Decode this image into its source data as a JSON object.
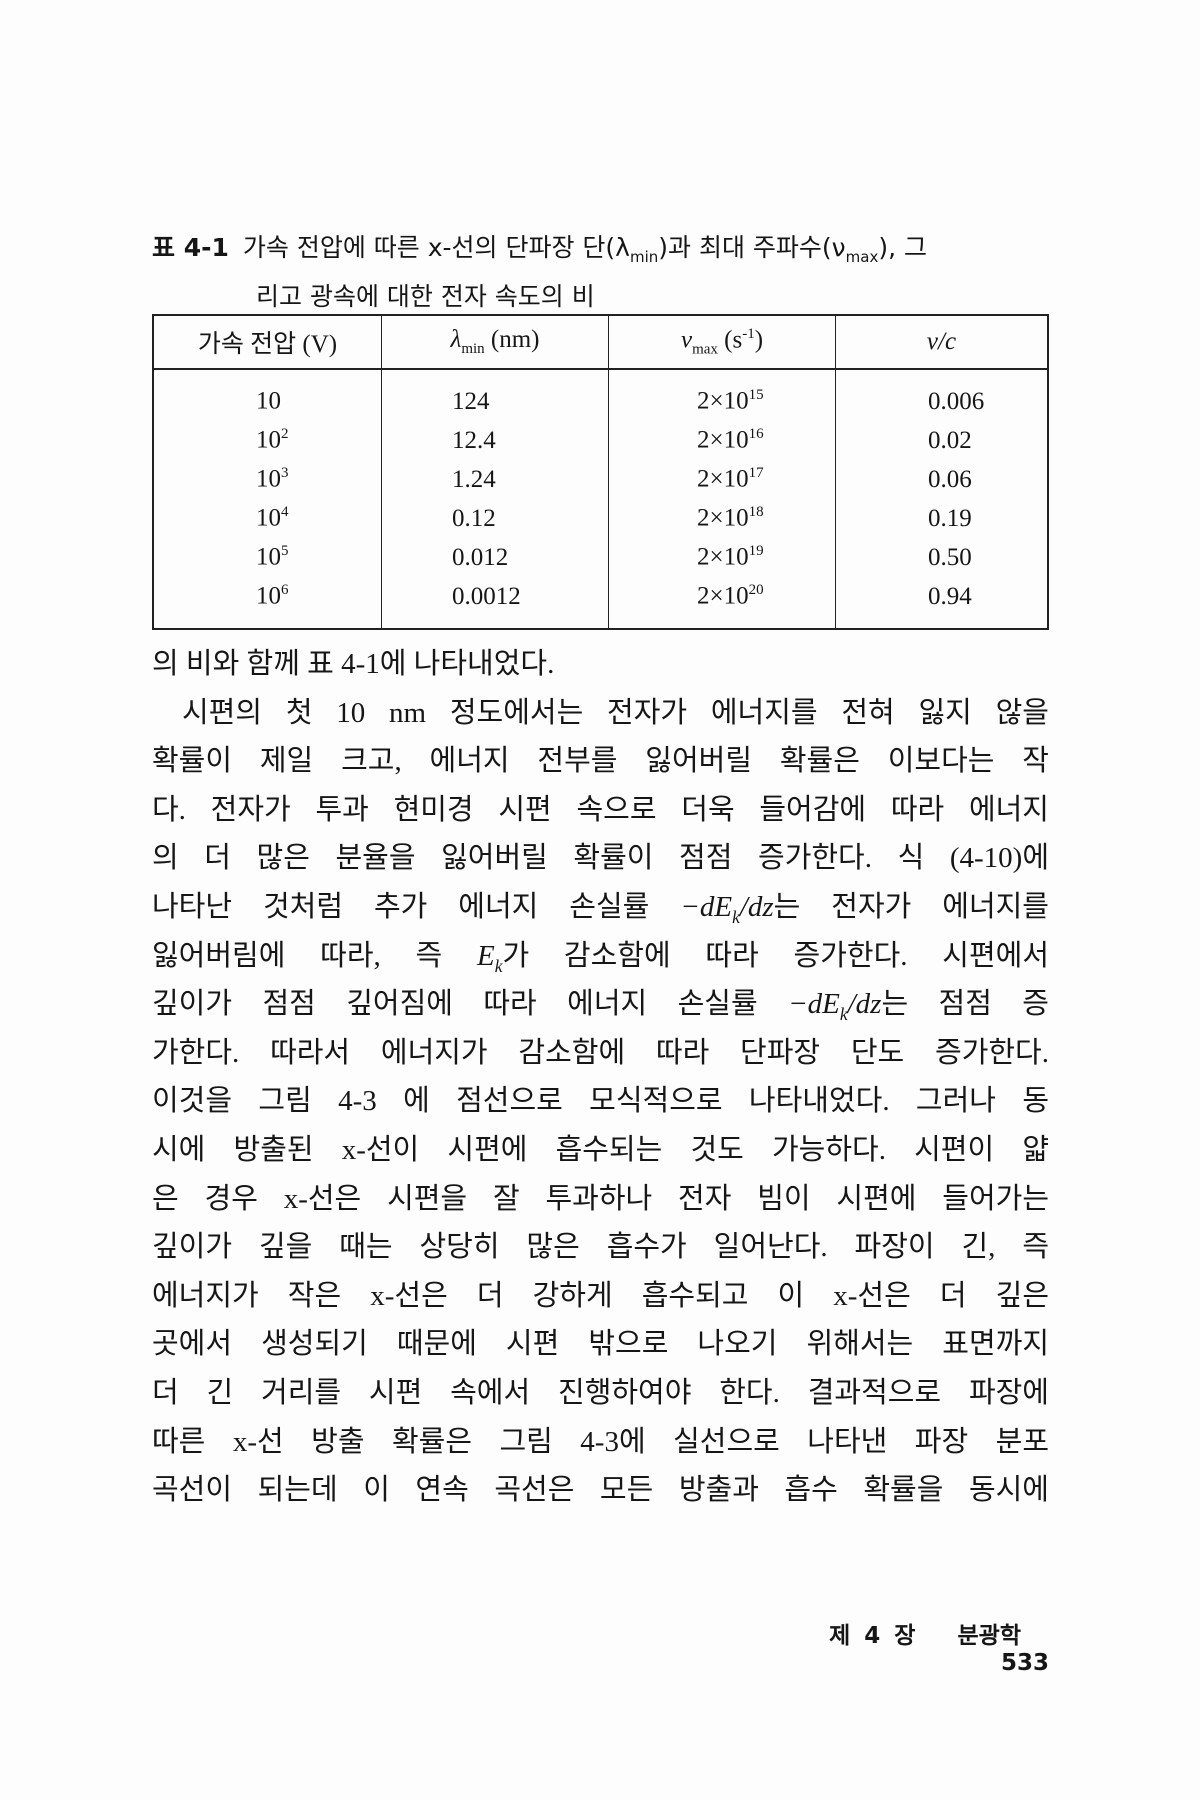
{
  "caption": {
    "label": "표 4-1",
    "line1_a": "가속 전압에 따른 x-선의 단파장 단(λ",
    "line1_sub1": "min",
    "line1_b": ")과 최대 주파수(ν",
    "line1_sub2": "max",
    "line1_c": "), 그",
    "line2": "리고 광속에 대한 전자 속도의 비"
  },
  "table": {
    "headers": {
      "voltage": "가속 전압 (V)",
      "lambda_sym": "λ",
      "lambda_sub": "min",
      "lambda_unit": " (nm)",
      "nu_sym": "ν",
      "nu_sub": "max",
      "nu_unit_a": " (s",
      "nu_unit_exp": "-1",
      "nu_unit_b": ")",
      "vc": "v/c"
    },
    "rows": [
      {
        "v_base": "10",
        "v_exp": "",
        "lambda": "124",
        "nu_base": "2×10",
        "nu_exp": "15",
        "vc": "0.006"
      },
      {
        "v_base": "10",
        "v_exp": "2",
        "lambda": "12.4",
        "nu_base": "2×10",
        "nu_exp": "16",
        "vc": "0.02"
      },
      {
        "v_base": "10",
        "v_exp": "3",
        "lambda": "1.24",
        "nu_base": "2×10",
        "nu_exp": "17",
        "vc": "0.06"
      },
      {
        "v_base": "10",
        "v_exp": "4",
        "lambda": "0.12",
        "nu_base": "2×10",
        "nu_exp": "18",
        "vc": "0.19"
      },
      {
        "v_base": "10",
        "v_exp": "5",
        "lambda": "0.012",
        "nu_base": "2×10",
        "nu_exp": "19",
        "vc": "0.50"
      },
      {
        "v_base": "10",
        "v_exp": "6",
        "lambda": "0.0012",
        "nu_base": "2×10",
        "nu_exp": "20",
        "vc": "0.94"
      }
    ]
  },
  "body_lines": [
    [
      {
        "t": "의 비와 함께 표 4-1에 나타내었다."
      }
    ],
    [
      {
        "t": "시편의 첫 10 nm 정도에서는 전자가 에너지를 전혀 잃지 않을"
      }
    ],
    [
      {
        "t": "확률이 제일 크고, 에너지 전부를 잃어버릴 확률은 이보다는 작"
      }
    ],
    [
      {
        "t": "다. 전자가 투과 현미경 시편 속으로 더욱 들어감에 따라 에너지"
      }
    ],
    [
      {
        "t": "의 더 많은 분율을 잃어버릴 확률이 점점 증가한다. 식 (4-10)에"
      }
    ],
    [
      {
        "t": "나타난 것처럼 추가 에너지 손실률 "
      },
      {
        "t": "−dE",
        "i": true
      },
      {
        "t": "k",
        "i": true,
        "sub": true
      },
      {
        "t": "/dz",
        "i": true
      },
      {
        "t": "는 전자가 에너지를"
      }
    ],
    [
      {
        "t": "잃어버림에 따라, 즉 "
      },
      {
        "t": "E",
        "i": true
      },
      {
        "t": "k",
        "i": true,
        "sub": true
      },
      {
        "t": "가 감소함에 따라 증가한다. 시편에서"
      }
    ],
    [
      {
        "t": "깊이가 점점 깊어짐에 따라 에너지 손실률 "
      },
      {
        "t": "−dE",
        "i": true
      },
      {
        "t": "k",
        "i": true,
        "sub": true
      },
      {
        "t": "/dz",
        "i": true
      },
      {
        "t": "는 점점 증"
      }
    ],
    [
      {
        "t": "가한다. 따라서 에너지가 감소함에 따라 단파장 단도 증가한다."
      }
    ],
    [
      {
        "t": "이것을 그림 4-3 에 점선으로 모식적으로 나타내었다. 그러나 동"
      }
    ],
    [
      {
        "t": "시에 방출된 x-선이 시편에 흡수되는 것도 가능하다. 시편이 얇"
      }
    ],
    [
      {
        "t": "은 경우 x-선은 시편을 잘 투과하나 전자 빔이 시편에 들어가는"
      }
    ],
    [
      {
        "t": "깊이가 깊을 때는 상당히 많은 흡수가 일어난다. 파장이 긴, 즉"
      }
    ],
    [
      {
        "t": "에너지가 작은 x-선은 더 강하게 흡수되고 이 x-선은 더 깊은"
      }
    ],
    [
      {
        "t": "곳에서 생성되기 때문에 시편 밖으로 나오기 위해서는 표면까지"
      }
    ],
    [
      {
        "t": "더 긴 거리를 시편 속에서 진행하여야 한다. 결과적으로 파장에"
      }
    ],
    [
      {
        "t": "따른 x-선 방출 확률은 그림 4-3에 실선으로 나타낸 파장 분포"
      }
    ],
    [
      {
        "t": "곡선이 되는데 이 연속 곡선은 모든 방출과 흡수 확률을 동시에"
      }
    ]
  ],
  "footer": {
    "chapter": "제 4 장",
    "chapter_title": "분광학",
    "page_number": "533"
  }
}
